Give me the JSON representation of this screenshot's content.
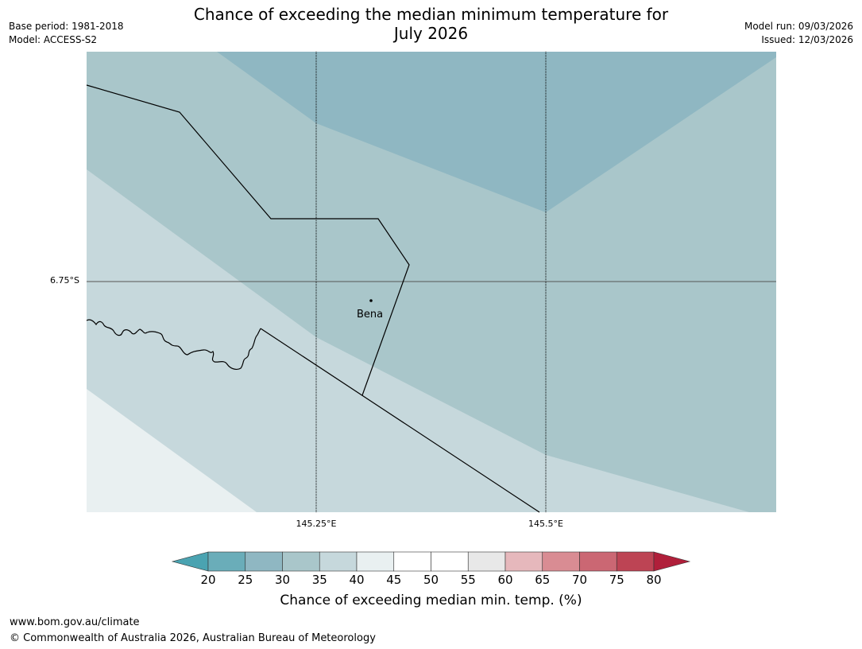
{
  "title_line1": "Chance of exceeding the median minimum temperature for",
  "title_line2": "July 2026",
  "meta_left": {
    "base_period": "Base period: 1981-2018",
    "model": "Model: ACCESS-S2"
  },
  "meta_right": {
    "model_run": "Model run: 09/03/2026",
    "issued": "Issued: 12/03/2026"
  },
  "map": {
    "lat_label": "6.75°S",
    "lon_labels": [
      "145.25°E",
      "145.5°E"
    ],
    "place": "Bena",
    "region_colors": {
      "band_25_30": "#8fb7c2",
      "band_30_35": "#a9c6ca",
      "band_35_40": "#c6d8dc",
      "band_40_45": "#e9f0f1"
    }
  },
  "colorbar": {
    "ticks": [
      "20",
      "25",
      "30",
      "35",
      "40",
      "45",
      "50",
      "55",
      "60",
      "65",
      "70",
      "75",
      "80"
    ],
    "colors": [
      "#6aadb9",
      "#8fb7c2",
      "#a9c6ca",
      "#c6d8dc",
      "#e9f0f1",
      "#ffffff",
      "#ffffff",
      "#e8e8e8",
      "#e6b8bc",
      "#d98c93",
      "#cb6773",
      "#bd4454"
    ],
    "under_color": "#4aa3b1",
    "over_color": "#b01f3a",
    "label": "Chance of exceeding median min. temp. (%)"
  },
  "footer": {
    "url": "www.bom.gov.au/climate",
    "copyright": "© Commonwealth of Australia 2026, Australian Bureau of Meteorology"
  }
}
